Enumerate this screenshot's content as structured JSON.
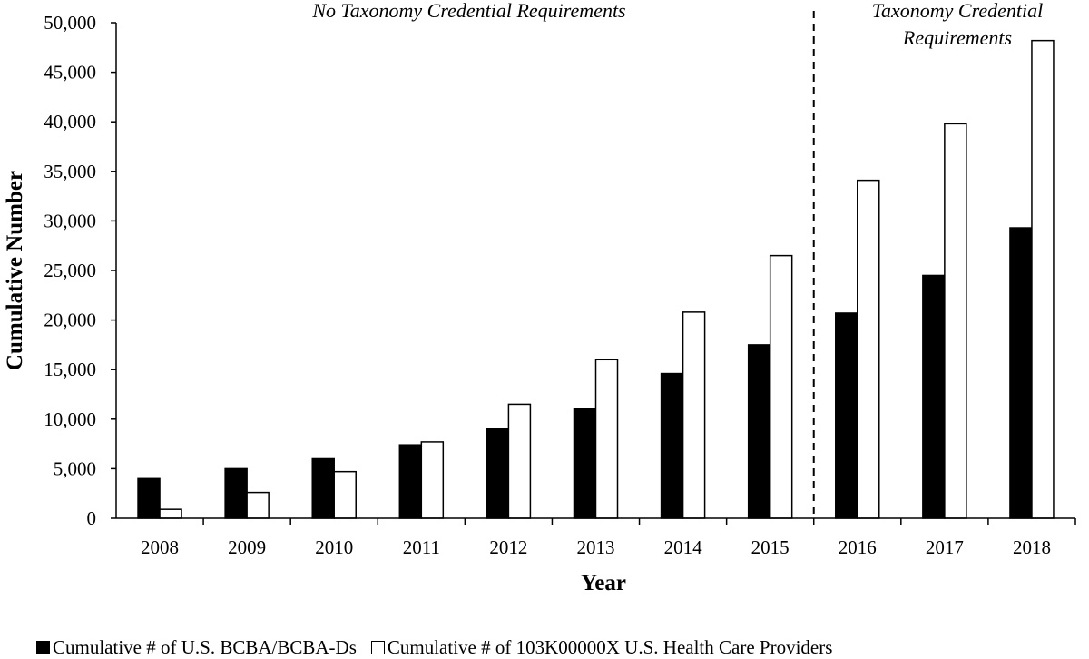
{
  "chart_data": {
    "type": "bar",
    "title": "",
    "xlabel": "Year",
    "ylabel": "Cumulative Number",
    "categories": [
      "2008",
      "2009",
      "2010",
      "2011",
      "2012",
      "2013",
      "2014",
      "2015",
      "2016",
      "2017",
      "2018"
    ],
    "ylim": [
      0,
      50000
    ],
    "yticks": [
      0,
      5000,
      10000,
      15000,
      20000,
      25000,
      30000,
      35000,
      40000,
      45000,
      50000
    ],
    "ytick_labels": [
      "0",
      "5,000",
      "10,000",
      "15,000",
      "20,000",
      "25,000",
      "30,000",
      "35,000",
      "40,000",
      "45,000",
      "50,000"
    ],
    "grid": false,
    "legend_position": "bottom",
    "series": [
      {
        "name": "Cumulative # of U.S. BCBA/BCBA-Ds",
        "color": "#000000",
        "fill": "solid",
        "values": [
          4000,
          5000,
          6000,
          7400,
          9000,
          11100,
          14600,
          17500,
          20700,
          24500,
          29300
        ]
      },
      {
        "name": "Cumulative # of 103K00000X U.S. Health Care Providers",
        "color": "#ffffff",
        "fill": "outline",
        "values": [
          900,
          2600,
          4700,
          7700,
          11500,
          16000,
          20800,
          26500,
          34100,
          39800,
          48200
        ]
      }
    ],
    "annotations": {
      "divider": "between 2015 and 2016",
      "left_text": "No Taxonomy Credential Requirements",
      "right_text_line1": "Taxonomy Credential",
      "right_text_line2": "Requirements"
    }
  }
}
